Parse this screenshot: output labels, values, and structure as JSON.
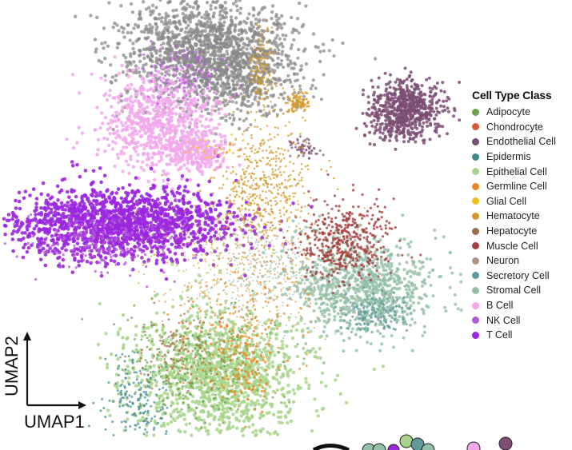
{
  "chart_data": {
    "type": "scatter",
    "title": "",
    "xlabel": "UMAP1",
    "ylabel": "UMAP2",
    "legend_title": "Cell Type Class",
    "legend_position": "right",
    "grid": false,
    "series": [
      {
        "name": "Adipocyte",
        "color": "#6da34d"
      },
      {
        "name": "Chondrocyte",
        "color": "#d9583b"
      },
      {
        "name": "Endothelial Cell",
        "color": "#7d4e74"
      },
      {
        "name": "Epidermis",
        "color": "#3f8a8c"
      },
      {
        "name": "Epithelial Cell",
        "color": "#a8d58c"
      },
      {
        "name": "Germline Cell",
        "color": "#e8891f"
      },
      {
        "name": "Glial Cell",
        "color": "#eec01a"
      },
      {
        "name": "Hematocyte",
        "color": "#d39a2a"
      },
      {
        "name": "Hepatocyte",
        "color": "#9b6b4b"
      },
      {
        "name": "Muscle Cell",
        "color": "#a3403f"
      },
      {
        "name": "Neuron",
        "color": "#b89088"
      },
      {
        "name": "Secretory Cell",
        "color": "#5e9a98"
      },
      {
        "name": "Stromal Cell",
        "color": "#93bfa8"
      },
      {
        "name": "B Cell",
        "color": "#f2a8ec"
      },
      {
        "name": "NK Cell",
        "color": "#b45ad8"
      },
      {
        "name": "T Cell",
        "color": "#9b27e0"
      }
    ]
  }
}
